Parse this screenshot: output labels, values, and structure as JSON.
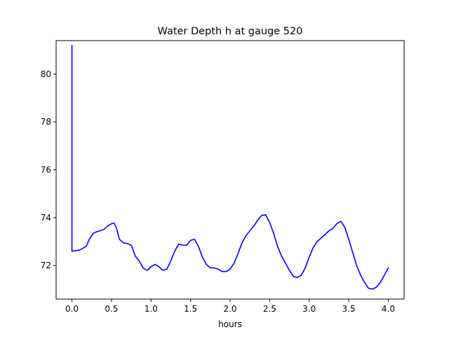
{
  "chart_data": {
    "type": "line",
    "title": "Water Depth h at gauge 520",
    "xlabel": "hours",
    "ylabel": "",
    "xlim": [
      -0.2,
      4.2
    ],
    "ylim": [
      70.6,
      81.4
    ],
    "grid": false,
    "x_ticks": [
      {
        "value": 0.0,
        "label": "0.0"
      },
      {
        "value": 0.5,
        "label": "0.5"
      },
      {
        "value": 1.0,
        "label": "1.0"
      },
      {
        "value": 1.5,
        "label": "1.5"
      },
      {
        "value": 2.0,
        "label": "2.0"
      },
      {
        "value": 2.5,
        "label": "2.5"
      },
      {
        "value": 3.0,
        "label": "3.0"
      },
      {
        "value": 3.5,
        "label": "3.5"
      },
      {
        "value": 4.0,
        "label": "4.0"
      }
    ],
    "y_ticks": [
      {
        "value": 72,
        "label": "72"
      },
      {
        "value": 74,
        "label": "74"
      },
      {
        "value": 76,
        "label": "76"
      },
      {
        "value": 78,
        "label": "78"
      },
      {
        "value": 80,
        "label": "80"
      }
    ],
    "series": [
      {
        "color": "#0000ff",
        "x": [
          0.0,
          0.0,
          0.005,
          0.1,
          0.18,
          0.22,
          0.27,
          0.3,
          0.35,
          0.4,
          0.45,
          0.5,
          0.53,
          0.56,
          0.6,
          0.65,
          0.7,
          0.75,
          0.8,
          0.85,
          0.9,
          0.95,
          1.0,
          1.05,
          1.1,
          1.15,
          1.2,
          1.25,
          1.3,
          1.35,
          1.4,
          1.45,
          1.5,
          1.55,
          1.6,
          1.65,
          1.7,
          1.75,
          1.8,
          1.85,
          1.9,
          1.95,
          2.0,
          2.05,
          2.1,
          2.15,
          2.2,
          2.25,
          2.3,
          2.35,
          2.4,
          2.45,
          2.5,
          2.55,
          2.6,
          2.65,
          2.7,
          2.75,
          2.8,
          2.85,
          2.9,
          2.95,
          3.0,
          3.05,
          3.1,
          3.15,
          3.2,
          3.25,
          3.3,
          3.35,
          3.4,
          3.45,
          3.5,
          3.55,
          3.6,
          3.65,
          3.7,
          3.75,
          3.8,
          3.85,
          3.9,
          3.95,
          4.0
        ],
        "y": [
          81.2,
          72.6,
          72.6,
          72.65,
          72.8,
          73.1,
          73.35,
          73.4,
          73.45,
          73.5,
          73.65,
          73.75,
          73.78,
          73.6,
          73.1,
          72.95,
          72.92,
          72.85,
          72.4,
          72.2,
          71.9,
          71.8,
          71.95,
          72.05,
          71.95,
          71.8,
          71.85,
          72.2,
          72.6,
          72.9,
          72.85,
          72.85,
          73.05,
          73.1,
          72.8,
          72.35,
          72.05,
          71.9,
          71.9,
          71.85,
          71.75,
          71.75,
          71.85,
          72.1,
          72.5,
          72.95,
          73.25,
          73.45,
          73.65,
          73.9,
          74.1,
          74.12,
          73.8,
          73.35,
          72.8,
          72.4,
          72.1,
          71.8,
          71.55,
          71.5,
          71.6,
          71.9,
          72.35,
          72.75,
          73.0,
          73.15,
          73.3,
          73.45,
          73.55,
          73.75,
          73.85,
          73.6,
          73.1,
          72.55,
          72.0,
          71.6,
          71.3,
          71.05,
          71.02,
          71.1,
          71.3,
          71.6,
          71.9
        ]
      }
    ]
  }
}
